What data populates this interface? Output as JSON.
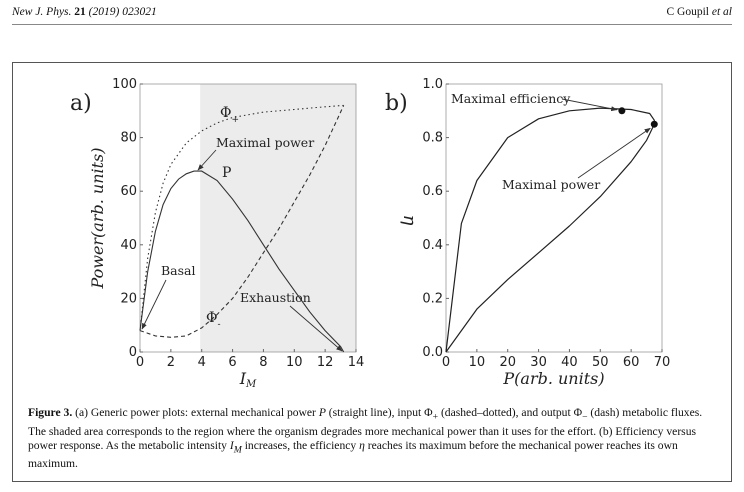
{
  "header": {
    "journal": "New J. Phys.",
    "volume": "21",
    "year_article": "(2019) 023021",
    "author": "C Goupil",
    "etal": "et al"
  },
  "figure": {
    "panel_a": {
      "label": "a)",
      "xlabel": "I",
      "xlabel_sub": "M",
      "ylabel": "Power(arb. units)",
      "annotations": {
        "phi_plus": "Φ",
        "phi_plus_sub": "+",
        "phi_minus": "Φ",
        "phi_minus_sub": "-",
        "maximal_power": "Maximal power",
        "p": "P",
        "basal": "Basal",
        "exhaustion": "Exhaustion"
      }
    },
    "panel_b": {
      "label": "b)",
      "xlabel": "P(arb. units)",
      "ylabel": "η",
      "annotations": {
        "maximal_efficiency": "Maximal efficiency",
        "maximal_power": "Maximal power"
      }
    }
  },
  "chart_data": [
    {
      "type": "line",
      "panel": "a",
      "xlabel": "I_M",
      "ylabel": "Power(arb. units)",
      "xlim": [
        0,
        14
      ],
      "ylim": [
        0,
        100
      ],
      "xticks": [
        0,
        2,
        4,
        6,
        8,
        10,
        12,
        14
      ],
      "yticks": [
        0,
        20,
        40,
        60,
        80,
        100
      ],
      "shaded_region": {
        "x_from": 3.9,
        "x_to": 14
      },
      "series": [
        {
          "name": "P",
          "style": "solid",
          "x": [
            0,
            0.5,
            1,
            1.5,
            2,
            2.5,
            3,
            3.5,
            4,
            5,
            6,
            7,
            8,
            9,
            10,
            11,
            12,
            13,
            13.2
          ],
          "y": [
            8,
            30,
            45,
            55,
            61,
            64.5,
            66.5,
            67.5,
            67.5,
            64,
            57,
            49,
            40,
            31,
            23,
            15,
            8,
            2,
            0
          ]
        },
        {
          "name": "Φ+",
          "style": "dashdot",
          "x": [
            0,
            0.5,
            1,
            1.5,
            2,
            3,
            4,
            5,
            6,
            7,
            8,
            9,
            10,
            11,
            12,
            13.2
          ],
          "y": [
            8,
            35,
            52,
            63,
            70,
            78,
            82.5,
            85.5,
            87.5,
            88.5,
            89.5,
            90,
            90.5,
            91,
            91.5,
            92
          ]
        },
        {
          "name": "Φ-",
          "style": "dashed",
          "x": [
            0,
            1,
            2,
            3,
            4,
            5,
            6,
            7,
            8,
            9,
            10,
            11,
            12,
            13.2
          ],
          "y": [
            8,
            6,
            5.5,
            6,
            9,
            14,
            20,
            28,
            37,
            46,
            56,
            66,
            77,
            92
          ]
        }
      ]
    },
    {
      "type": "line",
      "panel": "b",
      "xlabel": "P(arb. units)",
      "ylabel": "η",
      "xlim": [
        0,
        70
      ],
      "ylim": [
        0,
        1.0
      ],
      "xticks": [
        0,
        10,
        20,
        30,
        40,
        50,
        60,
        70
      ],
      "yticks": [
        0.0,
        0.2,
        0.4,
        0.6,
        0.8,
        1.0
      ],
      "series": [
        {
          "name": "η(P)",
          "style": "solid",
          "x": [
            0,
            10,
            20,
            30,
            40,
            50,
            60,
            65,
            67.5,
            67.5,
            66,
            60,
            50,
            40,
            30,
            20,
            10,
            5,
            0
          ],
          "y": [
            0,
            0.16,
            0.27,
            0.37,
            0.47,
            0.58,
            0.71,
            0.79,
            0.85,
            0.865,
            0.89,
            0.905,
            0.91,
            0.9,
            0.87,
            0.8,
            0.64,
            0.48,
            0
          ]
        }
      ],
      "markers": [
        {
          "label": "Maximal efficiency",
          "x": 57,
          "y": 0.9
        },
        {
          "label": "Maximal power",
          "x": 67.5,
          "y": 0.85
        }
      ]
    }
  ],
  "caption": {
    "label": "Figure 3.",
    "text_1": " (a) Generic power plots: external mechanical power ",
    "P": "P",
    "text_2": " (straight line), input Φ",
    "plus": "+",
    "text_3": " (dashed–dotted), and output Φ",
    "minus": "−",
    "text_4": " (dash) metabolic fluxes. The shaded area corresponds to the region where the organism degrades more mechanical power than it uses for the effort. (b) Efficiency versus power response. As the metabolic intensity ",
    "I": "I",
    "M": "M",
    "text_5": " increases, the efficiency ",
    "eta": "η",
    "text_6": " reaches its maximum before the mechanical power reaches its own maximum."
  }
}
